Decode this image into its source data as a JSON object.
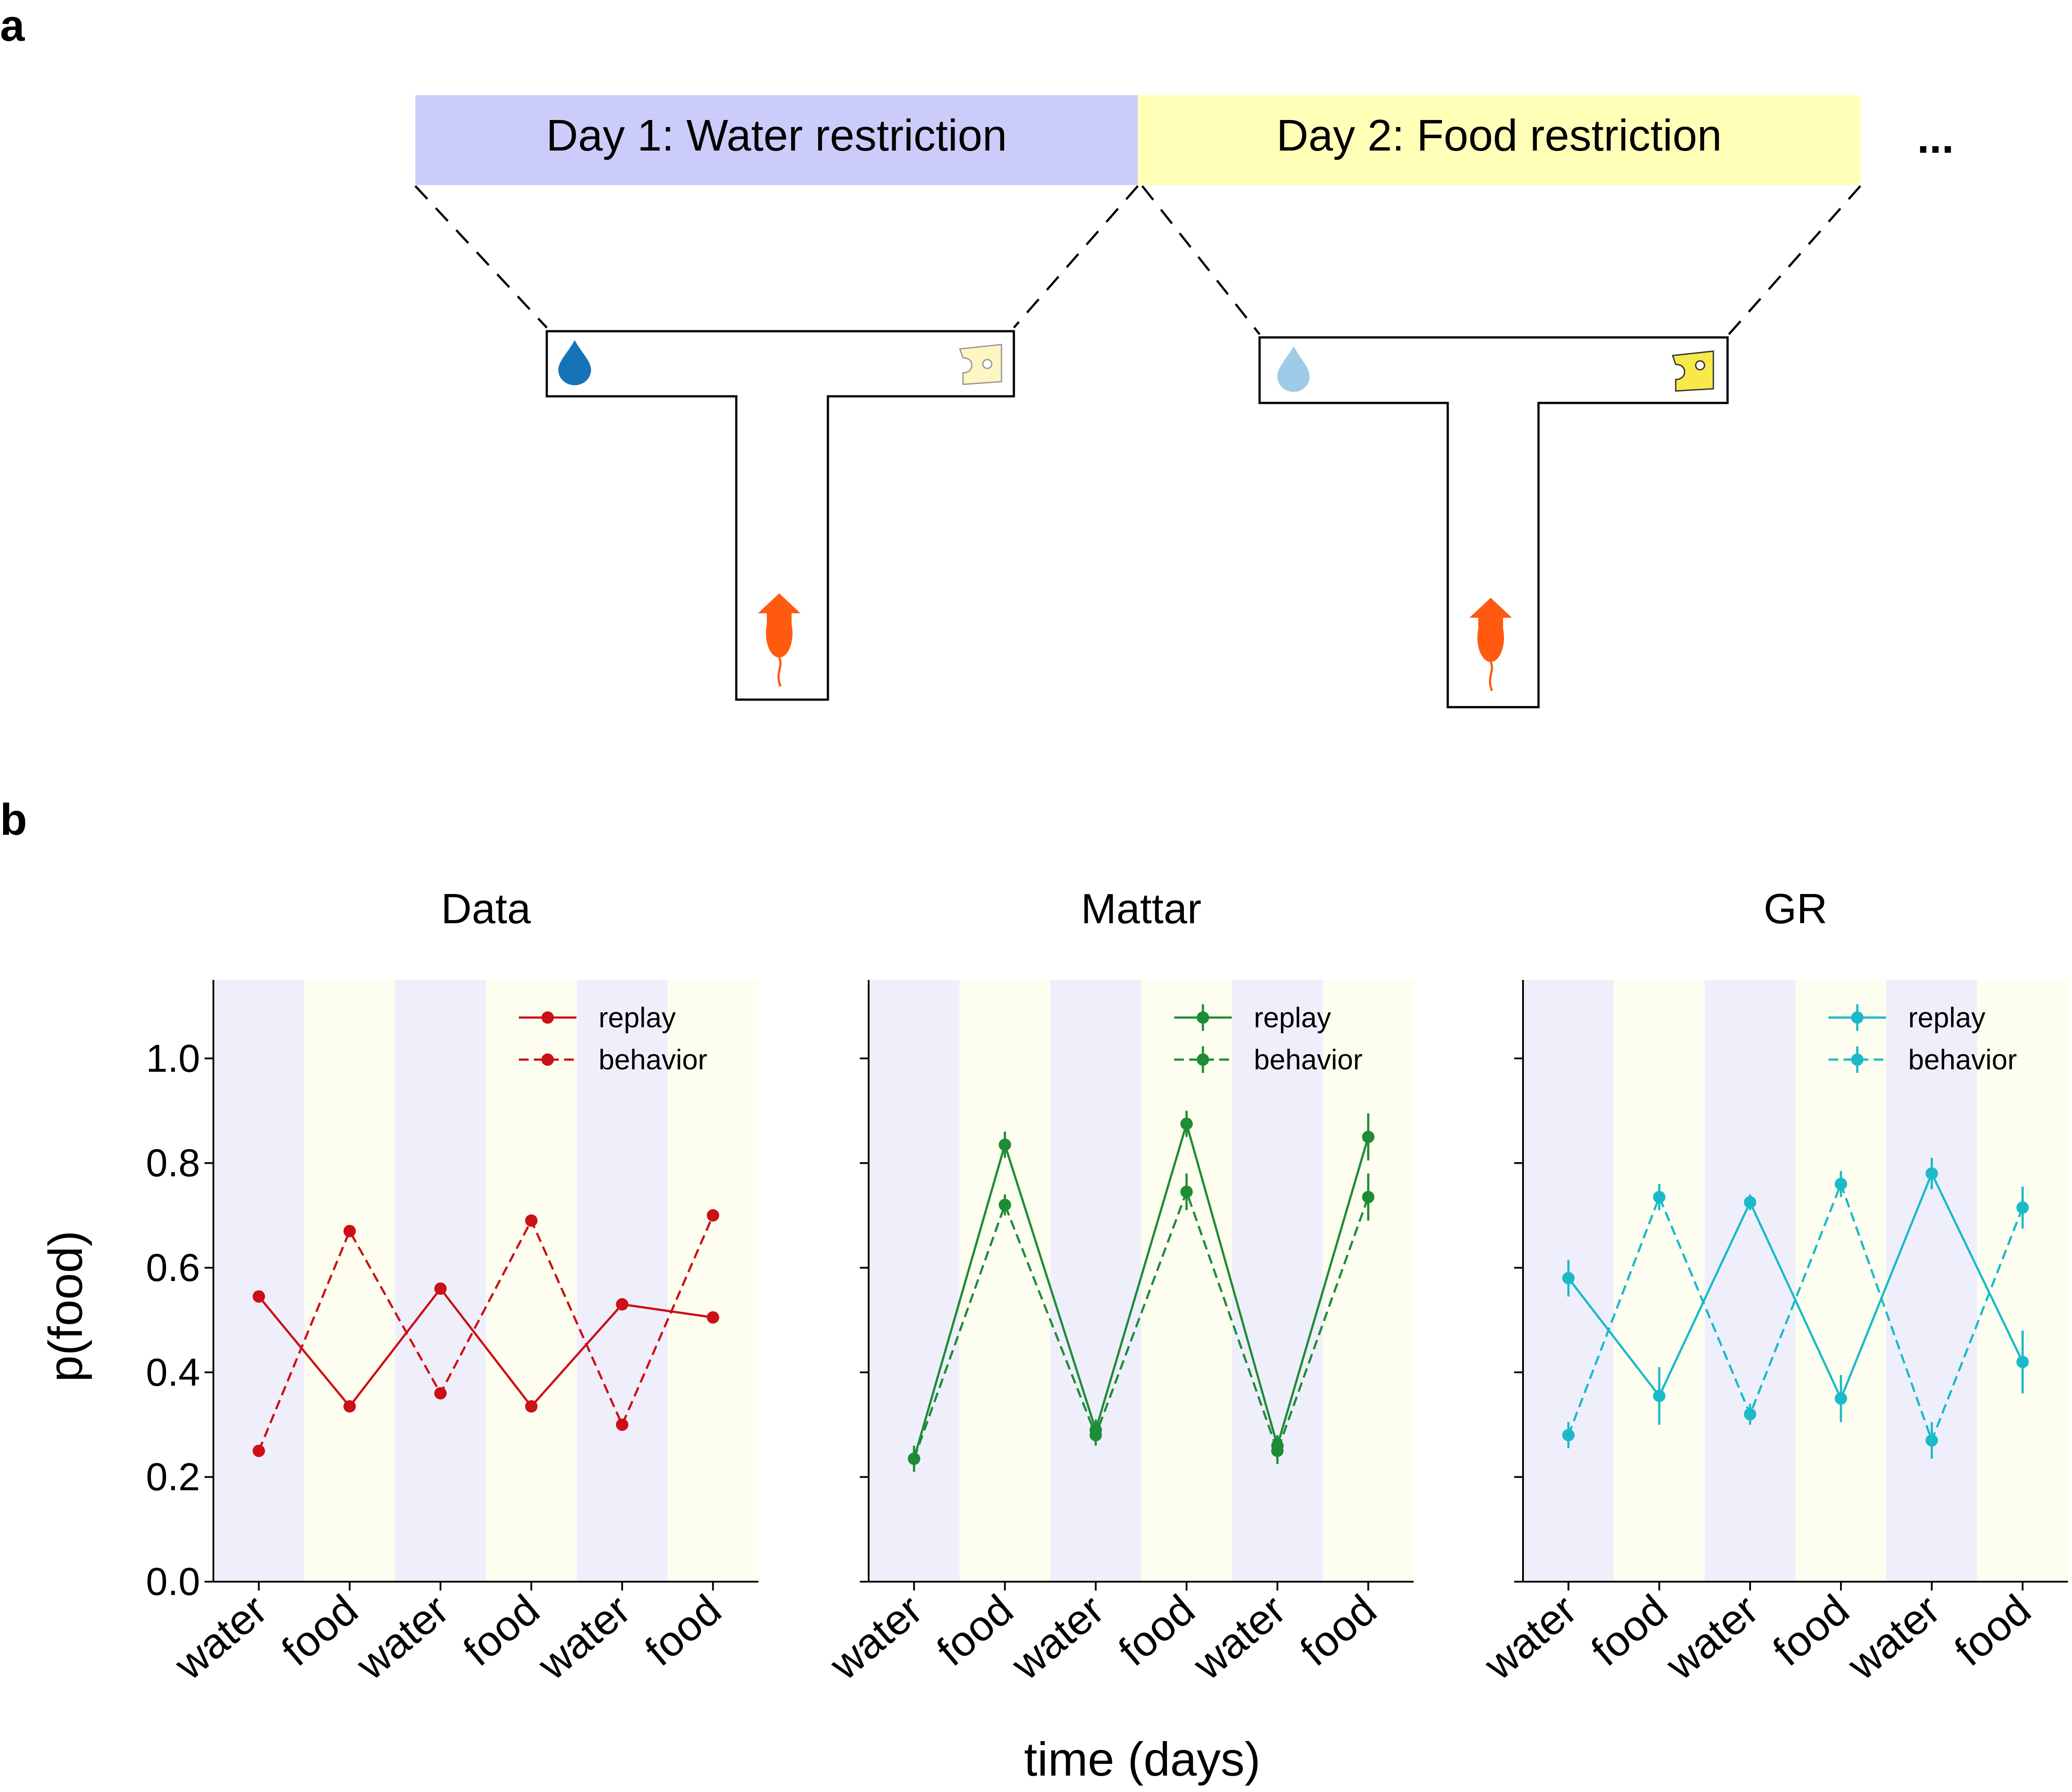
{
  "panel_a": {
    "label": "a",
    "day1_label": "Day 1: Water restriction",
    "day2_label": "Day 2: Food restriction",
    "ellipsis": "...",
    "colors": {
      "day1_band": "#ccccfa",
      "day2_band": "#ffffb8",
      "mouse": "#ff5a0f",
      "water_strong": "#1673b8",
      "water_faint": "#9fcbe9",
      "cheese_faint": "#fdf6c2",
      "cheese_strong": "#f7e94a"
    },
    "icons": [
      "water-drop-icon",
      "cheese-icon",
      "mouse-icon",
      "up-arrow-icon"
    ]
  },
  "panel_b": {
    "label": "b",
    "ylabel": "p(food)",
    "xlabel": "time (days)",
    "background_colors": {
      "water": "#efeffc",
      "food": "#fefef0"
    }
  },
  "chart_data": [
    {
      "type": "line",
      "title": "Data",
      "categories": [
        "water",
        "food",
        "water",
        "food",
        "water",
        "food"
      ],
      "ylim": [
        0,
        1.15
      ],
      "yticks": [
        "0.0",
        "0.2",
        "0.4",
        "0.6",
        "0.8",
        "1.0"
      ],
      "color": "#cc1016",
      "error_bars": false,
      "legend": "top-right",
      "series": [
        {
          "name": "replay",
          "style": "solid",
          "values": [
            0.545,
            0.335,
            0.56,
            0.335,
            0.53,
            0.505
          ]
        },
        {
          "name": "behavior",
          "style": "dashed",
          "values": [
            0.25,
            0.67,
            0.36,
            0.69,
            0.3,
            0.7
          ]
        }
      ]
    },
    {
      "type": "line",
      "title": "Mattar",
      "categories": [
        "water",
        "food",
        "water",
        "food",
        "water",
        "food"
      ],
      "ylim": [
        0,
        1.15
      ],
      "color": "#1e8c36",
      "error_bars": true,
      "legend": "top-right",
      "series": [
        {
          "name": "replay",
          "style": "solid",
          "values": [
            0.235,
            0.835,
            0.29,
            0.875,
            0.26,
            0.85
          ],
          "errors": [
            0.02,
            0.025,
            0.02,
            0.025,
            0.02,
            0.045
          ]
        },
        {
          "name": "behavior",
          "style": "dashed",
          "values": [
            0.235,
            0.72,
            0.28,
            0.745,
            0.25,
            0.735
          ],
          "errors": [
            0.025,
            0.02,
            0.02,
            0.035,
            0.025,
            0.045
          ]
        }
      ]
    },
    {
      "type": "line",
      "title": "GR",
      "categories": [
        "water",
        "food",
        "water",
        "food",
        "water",
        "food"
      ],
      "ylim": [
        0,
        1.15
      ],
      "color": "#1cbac9",
      "error_bars": true,
      "legend": "top-right",
      "series": [
        {
          "name": "replay",
          "style": "solid",
          "values": [
            0.58,
            0.355,
            0.725,
            0.35,
            0.78,
            0.42
          ],
          "errors": [
            0.035,
            0.055,
            0.015,
            0.045,
            0.03,
            0.06
          ]
        },
        {
          "name": "behavior",
          "style": "dashed",
          "values": [
            0.28,
            0.735,
            0.32,
            0.76,
            0.27,
            0.715
          ],
          "errors": [
            0.025,
            0.025,
            0.02,
            0.025,
            0.035,
            0.04
          ]
        }
      ]
    }
  ]
}
